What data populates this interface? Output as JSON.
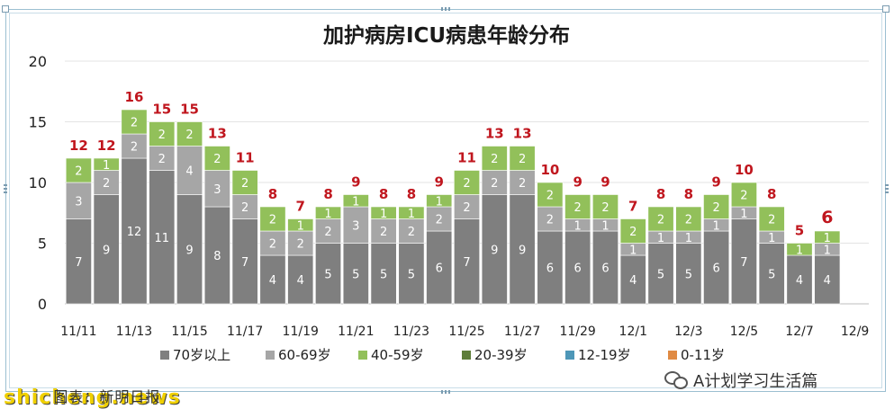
{
  "chart_data": {
    "type": "bar",
    "stacked": true,
    "title": "加护病房ICU病患年龄分布",
    "xlabel": "",
    "ylabel": "",
    "ylim": [
      0,
      20
    ],
    "yticks": [
      0,
      5,
      10,
      15,
      20
    ],
    "grid": true,
    "legend_position": "bottom",
    "categories": [
      "11/11",
      "11/12",
      "11/13",
      "11/14",
      "11/15",
      "11/16",
      "11/17",
      "11/18",
      "11/19",
      "11/20",
      "11/21",
      "11/22",
      "11/23",
      "11/24",
      "11/25",
      "11/26",
      "11/27",
      "11/28",
      "11/29",
      "11/30",
      "12/1",
      "12/2",
      "12/3",
      "12/4",
      "12/5",
      "12/6",
      "12/7",
      "12/8",
      "12/9"
    ],
    "tick_labels": [
      "11/11",
      "11/13",
      "11/15",
      "11/17",
      "11/19",
      "11/21",
      "11/23",
      "11/25",
      "11/27",
      "11/29",
      "12/1",
      "12/3",
      "12/5",
      "12/7",
      "12/9"
    ],
    "series": [
      {
        "name": "70岁以上",
        "color": "#7f7f7f",
        "values": [
          7,
          9,
          12,
          11,
          9,
          8,
          7,
          4,
          4,
          5,
          5,
          5,
          5,
          6,
          7,
          9,
          9,
          6,
          6,
          6,
          4,
          5,
          5,
          6,
          7,
          5,
          4,
          4,
          null
        ]
      },
      {
        "name": "60-69岁",
        "color": "#a6a6a6",
        "values": [
          3,
          2,
          2,
          2,
          4,
          3,
          2,
          2,
          2,
          2,
          3,
          2,
          2,
          2,
          2,
          2,
          2,
          2,
          1,
          1,
          1,
          1,
          1,
          1,
          1,
          1,
          0,
          1,
          null
        ]
      },
      {
        "name": "40-59岁",
        "color": "#92c05a",
        "values": [
          2,
          1,
          2,
          2,
          2,
          2,
          2,
          2,
          1,
          1,
          1,
          1,
          1,
          1,
          2,
          2,
          2,
          2,
          2,
          2,
          2,
          2,
          2,
          2,
          2,
          2,
          1,
          1,
          null
        ]
      },
      {
        "name": "20-39岁",
        "color": "#5e7e3a",
        "values": [
          0,
          0,
          0,
          0,
          0,
          0,
          0,
          0,
          0,
          0,
          0,
          0,
          0,
          0,
          0,
          0,
          0,
          0,
          0,
          0,
          0,
          0,
          0,
          0,
          0,
          0,
          0,
          0,
          null
        ]
      },
      {
        "name": "12-19岁",
        "color": "#4e97b8",
        "values": [
          0,
          0,
          0,
          0,
          0,
          0,
          0,
          0,
          0,
          0,
          0,
          0,
          0,
          0,
          0,
          0,
          0,
          0,
          0,
          0,
          0,
          0,
          0,
          0,
          0,
          0,
          0,
          0,
          null
        ]
      },
      {
        "name": "0-11岁",
        "color": "#e08a43",
        "values": [
          0,
          0,
          0,
          0,
          0,
          0,
          0,
          0,
          0,
          0,
          0,
          0,
          0,
          0,
          0,
          0,
          0,
          0,
          0,
          0,
          0,
          0,
          0,
          0,
          0,
          0,
          0,
          0,
          null
        ]
      }
    ],
    "totals": [
      12,
      12,
      16,
      15,
      15,
      13,
      11,
      8,
      7,
      8,
      9,
      8,
      8,
      9,
      11,
      13,
      13,
      10,
      9,
      9,
      7,
      8,
      8,
      9,
      10,
      8,
      5,
      6,
      null
    ],
    "total_label_color": "#c0161e"
  },
  "watermarks": {
    "left_prefix": "shicheng",
    "left_suffix": ".news",
    "caption": "图表：新明日报",
    "right": "A计划学习生活篇"
  }
}
